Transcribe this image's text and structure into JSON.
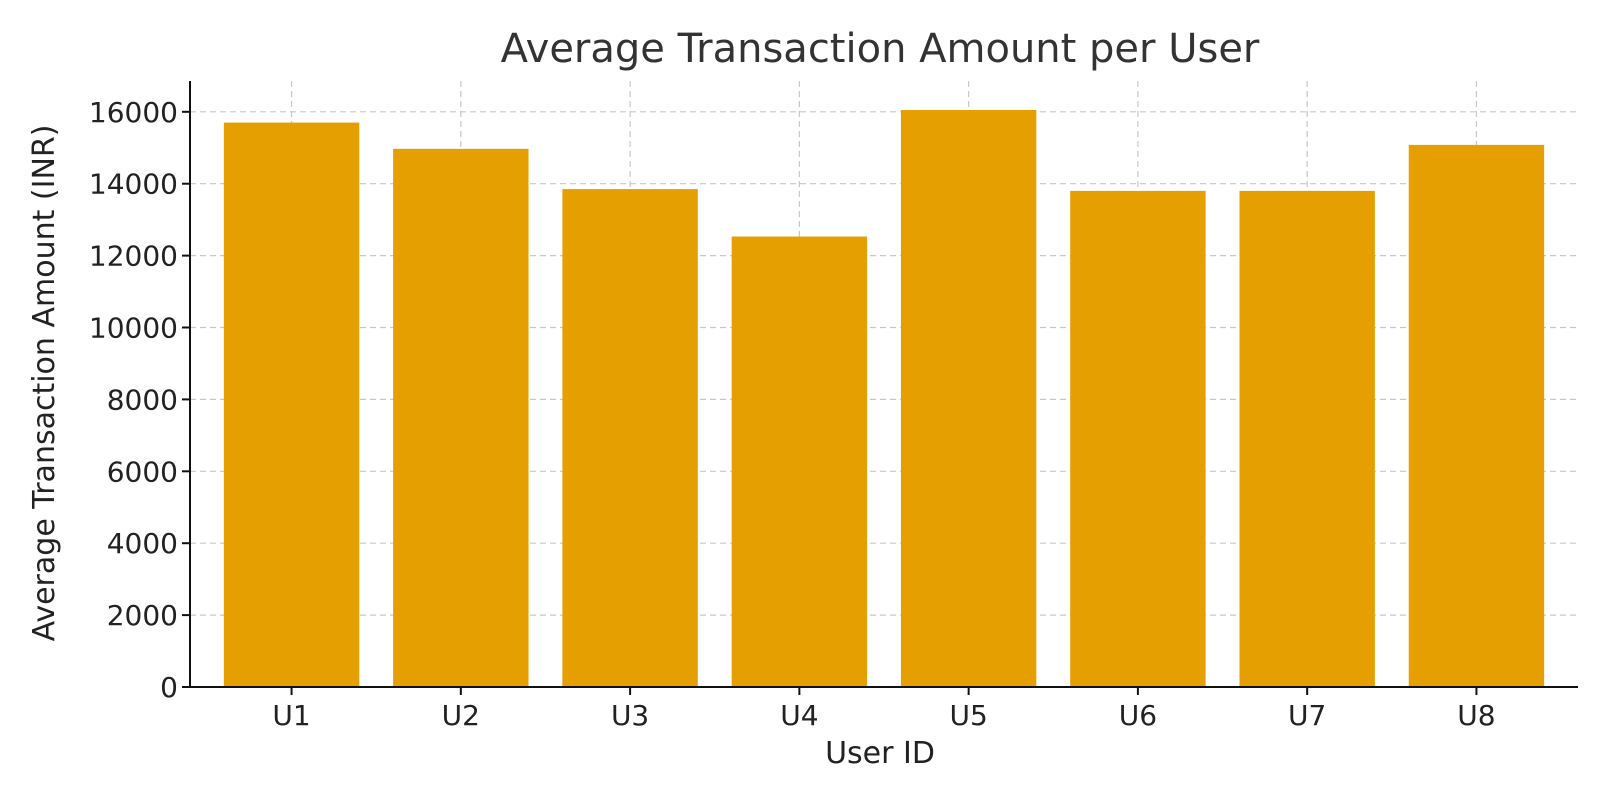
{
  "chart_data": {
    "type": "bar",
    "title": "Average Transaction Amount per User",
    "xlabel": "User ID",
    "ylabel": "Average Transaction Amount (INR)",
    "categories": [
      "U1",
      "U2",
      "U3",
      "U4",
      "U5",
      "U6",
      "U7",
      "U8"
    ],
    "values": [
      15700,
      14970,
      13850,
      12530,
      16050,
      13800,
      13800,
      15080
    ],
    "ylim": [
      0,
      16857
    ],
    "yticks": [
      0,
      2000,
      4000,
      6000,
      8000,
      10000,
      12000,
      14000,
      16000
    ],
    "grid": true,
    "legend": "none",
    "bar_color": "#E69F00"
  }
}
